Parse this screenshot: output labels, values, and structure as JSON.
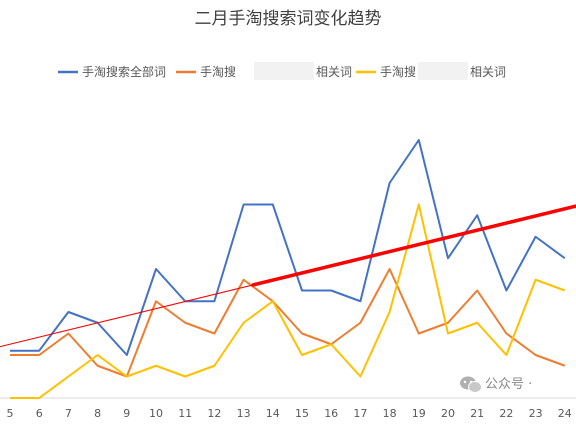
{
  "chart_data": {
    "type": "line",
    "title": "二月手淘搜索词变化趋势",
    "xlabel": "",
    "ylabel": "",
    "x": [
      5,
      6,
      7,
      8,
      9,
      10,
      11,
      12,
      13,
      14,
      15,
      16,
      17,
      18,
      19,
      20,
      21,
      22,
      23,
      24
    ],
    "ylim": [
      0,
      12.5
    ],
    "grid": false,
    "legend_position": "top",
    "series": [
      {
        "name": "手淘搜索全部词",
        "color": "#4472C4",
        "values": [
          2.2,
          2.2,
          4,
          3.5,
          2,
          6,
          4.5,
          4.5,
          9,
          9,
          5,
          5,
          4.5,
          10,
          12,
          6.5,
          8.5,
          5,
          7.5,
          6.5
        ]
      },
      {
        "name": "手淘搜 相关词",
        "color": "#ED7D31",
        "values": [
          2,
          2,
          3,
          1.5,
          1,
          4.5,
          3.5,
          3,
          5.5,
          4.5,
          3,
          2.5,
          3.5,
          6,
          3,
          3.5,
          5,
          3,
          2,
          1.5
        ]
      },
      {
        "name": "手淘搜 相关词",
        "color": "#FFC000",
        "values": [
          0,
          0,
          1,
          2,
          1,
          1.5,
          1,
          1.5,
          3.5,
          4.5,
          2,
          2.5,
          1,
          4,
          9,
          3,
          3.5,
          2,
          5.5,
          5
        ]
      }
    ],
    "trendline": {
      "color": "#FF0000",
      "x": [
        5,
        24
      ],
      "values": [
        2.5,
        8.8
      ]
    }
  },
  "watermark": {
    "icon": "wechat-icon",
    "text": "公众号 ·"
  }
}
